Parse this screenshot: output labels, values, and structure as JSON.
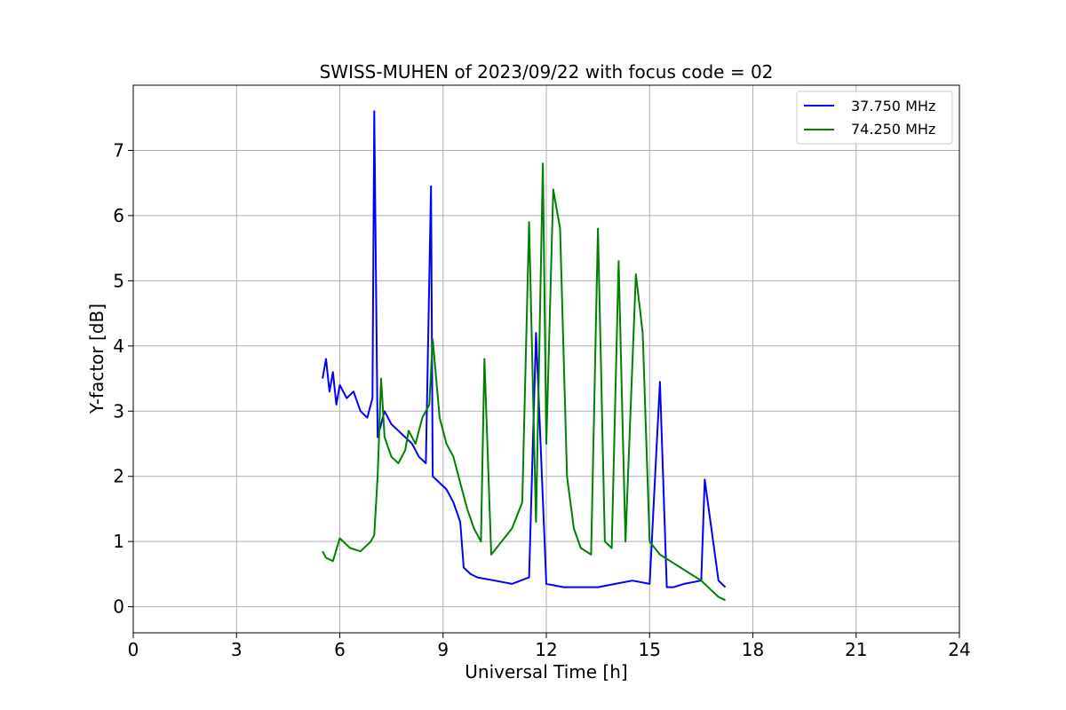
{
  "chart_data": {
    "type": "line",
    "title": "SWISS-MUHEN of 2023/09/22 with focus code = 02",
    "xlabel": "Universal Time [h]",
    "ylabel": "Y-factor [dB]",
    "xlim": [
      0,
      24
    ],
    "ylim": [
      -0.4,
      8.0
    ],
    "xticks": [
      0,
      3,
      6,
      9,
      12,
      15,
      18,
      21,
      24
    ],
    "yticks": [
      0,
      1,
      2,
      3,
      4,
      5,
      6,
      7
    ],
    "grid": true,
    "legend_position": "top-right",
    "series": [
      {
        "name": "37.750 MHz",
        "color": "#0000ff",
        "x": [
          5.5,
          5.6,
          5.7,
          5.8,
          5.9,
          6.0,
          6.2,
          6.4,
          6.6,
          6.8,
          6.95,
          7.0,
          7.1,
          7.3,
          7.5,
          7.7,
          7.9,
          8.1,
          8.3,
          8.5,
          8.65,
          8.7,
          8.9,
          9.1,
          9.3,
          9.5,
          9.6,
          9.8,
          10.0,
          10.5,
          11.0,
          11.5,
          11.7,
          12.0,
          12.5,
          13.0,
          13.5,
          14.0,
          14.5,
          15.0,
          15.3,
          15.5,
          15.7,
          16.0,
          16.5,
          16.6,
          17.0,
          17.2
        ],
        "y": [
          3.5,
          3.8,
          3.3,
          3.6,
          3.1,
          3.4,
          3.2,
          3.3,
          3.0,
          2.9,
          3.2,
          7.6,
          2.6,
          3.0,
          2.8,
          2.7,
          2.6,
          2.5,
          2.3,
          2.2,
          6.45,
          2.0,
          1.9,
          1.8,
          1.6,
          1.3,
          0.6,
          0.5,
          0.45,
          0.4,
          0.35,
          0.45,
          4.2,
          0.35,
          0.3,
          0.3,
          0.3,
          0.35,
          0.4,
          0.35,
          3.45,
          0.3,
          0.3,
          0.35,
          0.4,
          1.95,
          0.4,
          0.3
        ]
      },
      {
        "name": "74.250 MHz",
        "color": "#008000",
        "x": [
          5.5,
          5.6,
          5.8,
          6.0,
          6.3,
          6.6,
          6.9,
          7.0,
          7.1,
          7.2,
          7.3,
          7.5,
          7.7,
          7.9,
          8.0,
          8.2,
          8.4,
          8.6,
          8.7,
          8.9,
          9.1,
          9.3,
          9.5,
          9.7,
          9.9,
          10.1,
          10.2,
          10.4,
          10.7,
          11.0,
          11.3,
          11.5,
          11.7,
          11.9,
          12.0,
          12.2,
          12.4,
          12.6,
          12.8,
          13.0,
          13.3,
          13.5,
          13.7,
          13.9,
          14.1,
          14.3,
          14.6,
          14.8,
          15.0,
          15.3,
          15.6,
          15.9,
          16.2,
          16.5,
          16.8,
          17.0,
          17.2
        ],
        "y": [
          0.85,
          0.75,
          0.7,
          1.05,
          0.9,
          0.85,
          1.0,
          1.1,
          2.0,
          3.5,
          2.6,
          2.3,
          2.2,
          2.4,
          2.7,
          2.5,
          2.9,
          3.1,
          4.1,
          2.9,
          2.5,
          2.3,
          1.9,
          1.5,
          1.2,
          1.0,
          3.8,
          0.8,
          1.0,
          1.2,
          1.6,
          5.9,
          1.3,
          6.8,
          2.5,
          6.4,
          5.8,
          2.0,
          1.2,
          0.9,
          0.8,
          5.8,
          1.0,
          0.9,
          5.3,
          1.0,
          5.1,
          4.2,
          1.0,
          0.8,
          0.7,
          0.6,
          0.5,
          0.4,
          0.25,
          0.15,
          0.1
        ]
      }
    ]
  }
}
